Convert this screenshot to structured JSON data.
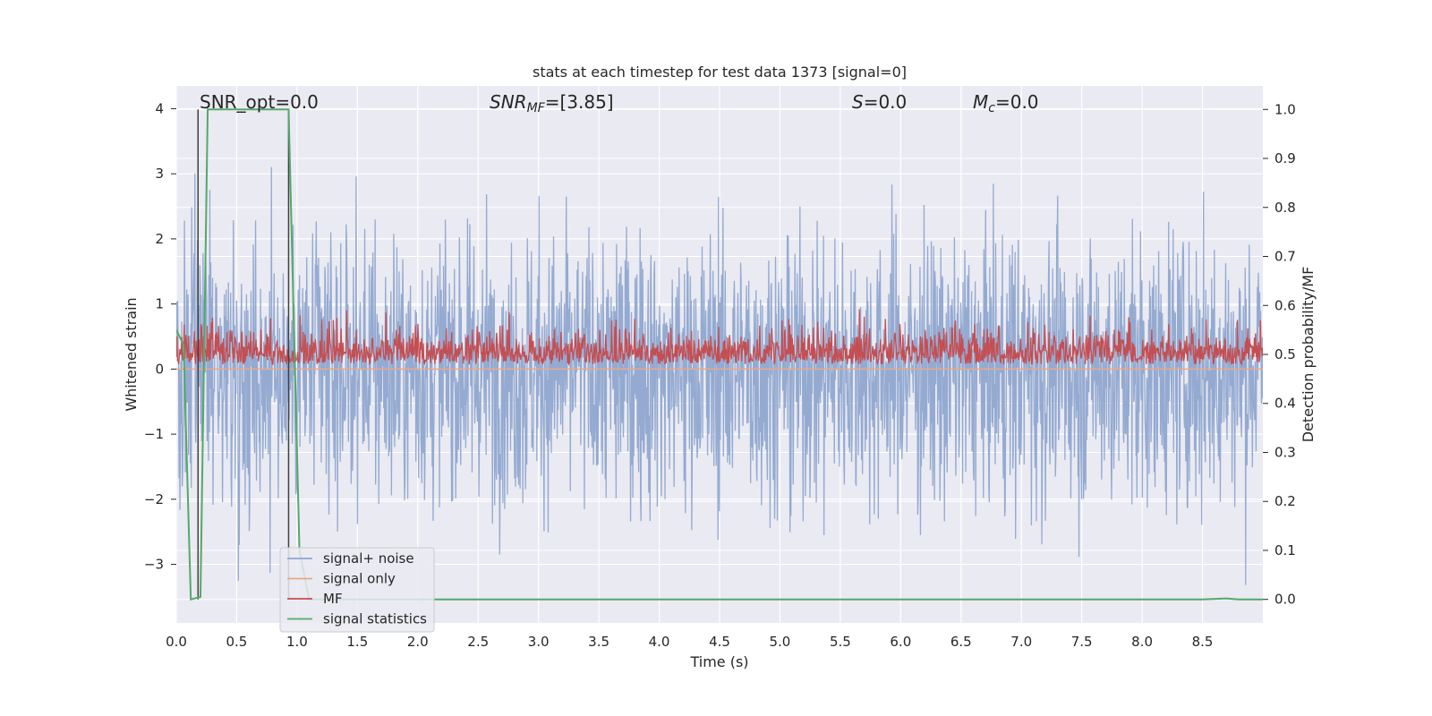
{
  "chart_data": {
    "type": "line",
    "title": "stats at each timestep for test data 1373 [signal=0]",
    "xlabel": "Time (s)",
    "ylabel": "Whitened strain",
    "ylabel_right": "Detection probability/MF",
    "xlim": [
      0.0,
      9.0
    ],
    "ylim": [
      -3.9,
      4.35
    ],
    "ylim_right": [
      -0.048,
      1.048
    ],
    "x_ticks": [
      "0.0",
      "0.5",
      "1.0",
      "1.5",
      "2.0",
      "2.5",
      "3.0",
      "3.5",
      "4.0",
      "4.5",
      "5.0",
      "5.5",
      "6.0",
      "6.5",
      "7.0",
      "7.5",
      "8.0",
      "8.5"
    ],
    "y_ticks": [
      "4",
      "3",
      "2",
      "1",
      "0",
      "−1",
      "−2",
      "−3"
    ],
    "y_ticks_right": [
      "1.0",
      "0.9",
      "0.8",
      "0.7",
      "0.6",
      "0.5",
      "0.4",
      "0.3",
      "0.2",
      "0.1",
      "0.0"
    ],
    "grid": true,
    "legend_position": "lower-left",
    "annotations": {
      "snr_opt": "SNR_opt=0.0",
      "snr_mf_main": "SNR",
      "snr_mf_sub": "MF",
      "snr_mf_value": "=[3.85]",
      "s_main": "S",
      "s_value": "=0.0",
      "mc_main": "M",
      "mc_sub": "c",
      "mc_value": "=0.0"
    },
    "vertical_markers_s": [
      0.18,
      0.93
    ],
    "series": [
      {
        "name": "signal+ noise",
        "color": "#8fa6cf",
        "axis": "left",
        "description_values": {
          "envelope_min": -3.5,
          "envelope_max": 4.0,
          "duration_s": 9.0
        }
      },
      {
        "name": "signal only",
        "color": "#e8a88a",
        "axis": "left",
        "description_values": {
          "constant": 0.0
        }
      },
      {
        "name": "MF",
        "color": "#c44e52",
        "axis": "right",
        "description_values": {
          "baseline": 0.5,
          "peak": 0.6
        }
      },
      {
        "name": "signal statistics",
        "color": "#55a868",
        "axis": "right",
        "x": [
          0.0,
          0.06,
          0.12,
          0.2,
          0.26,
          0.93,
          1.02,
          1.1,
          1.5,
          2.0,
          3.0,
          4.0,
          5.0,
          6.0,
          7.0,
          8.0,
          8.5,
          8.7,
          8.8,
          9.0
        ],
        "values": [
          0.55,
          0.52,
          0.0,
          0.005,
          1.0,
          1.0,
          0.1,
          0.0,
          0.0,
          0.0,
          0.0,
          0.0,
          0.0,
          0.0,
          0.0,
          0.0,
          0.0,
          0.002,
          0.0,
          0.0
        ]
      }
    ],
    "colors": {
      "background": "#eaeaf2",
      "grid": "#ffffff",
      "marker": "#404040"
    }
  }
}
